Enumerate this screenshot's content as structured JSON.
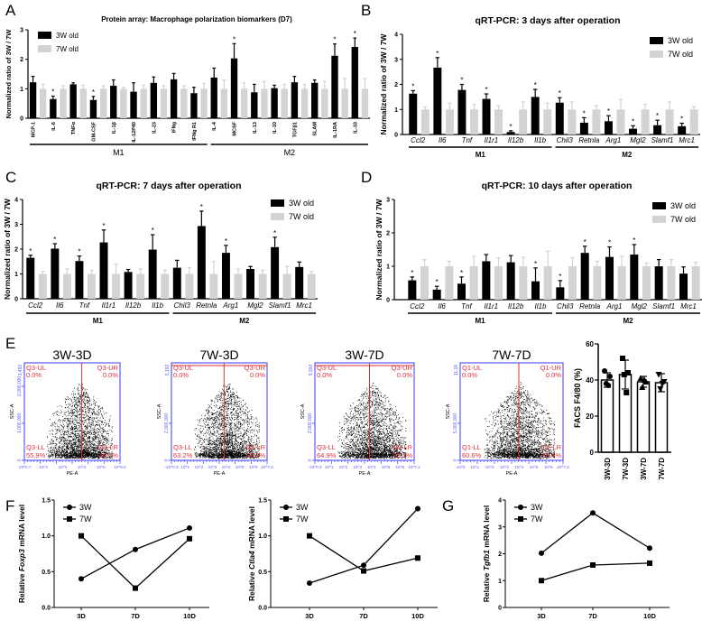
{
  "panel_labels": {
    "A": "A",
    "B": "B",
    "C": "C",
    "D": "D",
    "E": "E",
    "F": "F",
    "G": "G"
  },
  "chart_data": [
    {
      "id": "A",
      "type": "bar",
      "title": "Protein array: Macrophage polarization biomarkers (D7)",
      "ylabel": "Normalized ratio of 3W / 7W",
      "ylim": [
        0,
        3
      ],
      "yticks": [
        "0",
        "1",
        "2",
        "3"
      ],
      "categories": [
        "MCP-1",
        "IL-6",
        "TNFα",
        "GM-CSF",
        "IL-1β",
        "IL-12P40",
        "IL-23",
        "IFNg",
        "IFNg R1",
        "IL-4",
        "MCSF",
        "IL-13",
        "IL-10",
        "TGFβ1",
        "SLAM",
        "IL-1RA",
        "IL-33"
      ],
      "series": [
        {
          "name": "3W old",
          "color": "#000000",
          "values": [
            1.22,
            0.65,
            1.15,
            0.62,
            1.1,
            0.9,
            1.2,
            1.32,
            0.85,
            1.38,
            2.03,
            0.88,
            1.02,
            1.22,
            1.2,
            2.12,
            2.42
          ],
          "errors": [
            0.2,
            0.1,
            0.05,
            0.12,
            0.2,
            0.3,
            0.2,
            0.2,
            0.2,
            0.32,
            0.5,
            0.27,
            0.1,
            0.2,
            0.1,
            0.4,
            0.3
          ],
          "significant": [
            false,
            true,
            false,
            true,
            false,
            false,
            false,
            false,
            false,
            false,
            true,
            false,
            false,
            false,
            false,
            true,
            true
          ]
        },
        {
          "name": "7W old",
          "color": "#d3d3d3",
          "values": [
            1,
            1,
            1,
            1,
            1,
            1,
            1,
            1,
            1,
            1,
            1,
            1,
            1,
            1,
            1,
            1,
            1
          ],
          "errors": [
            0.15,
            0.1,
            0.12,
            0.1,
            0.05,
            0.12,
            0.1,
            0.1,
            0.18,
            0.3,
            0.2,
            0.25,
            0.15,
            0.15,
            0.25,
            0.35,
            0.35
          ]
        }
      ],
      "significance_mark": "*",
      "groups": [
        {
          "label": "M1",
          "from": 0,
          "to": 8
        },
        {
          "label": "M2",
          "from": 9,
          "to": 16
        }
      ],
      "legend": "top-left"
    },
    {
      "id": "B",
      "type": "bar",
      "title": "qRT-PCR: 3 days after operation",
      "ylabel": "Normalized ratio of 3W / 7W",
      "ylim": [
        0,
        4
      ],
      "yticks": [
        "0",
        "1",
        "2",
        "3",
        "4"
      ],
      "categories": [
        "Ccl2",
        "Il6",
        "Tnf",
        "Il1r1",
        "Il12b",
        "Il1b",
        "Chil3",
        "Retnla",
        "Arg1",
        "Mgl2",
        "Slamf1",
        "Mrc1"
      ],
      "series": [
        {
          "name": "3W old",
          "color": "#000000",
          "values": [
            1.63,
            2.67,
            1.78,
            1.42,
            0.1,
            1.5,
            1.27,
            0.47,
            0.53,
            0.23,
            0.37,
            0.33
          ],
          "errors": [
            0.12,
            0.4,
            0.22,
            0.2,
            0.05,
            0.3,
            0.2,
            0.2,
            0.22,
            0.12,
            0.2,
            0.12
          ],
          "significant": [
            true,
            true,
            true,
            true,
            true,
            true,
            true,
            true,
            true,
            true,
            true,
            true
          ]
        },
        {
          "name": "7W old",
          "color": "#d3d3d3",
          "values": [
            1,
            1,
            1,
            1,
            1,
            1,
            1,
            1,
            1,
            1,
            1,
            1
          ],
          "errors": [
            0.1,
            0.25,
            0.2,
            0.15,
            0.3,
            0.25,
            0.3,
            0.15,
            0.4,
            0.2,
            0.3,
            0.1
          ]
        }
      ],
      "significance_mark": "*",
      "groups": [
        {
          "label": "M1",
          "from": 0,
          "to": 5
        },
        {
          "label": "M2",
          "from": 6,
          "to": 11
        }
      ],
      "legend": "top-right"
    },
    {
      "id": "C",
      "type": "bar",
      "title": "qRT-PCR: 7 days after operation",
      "ylabel": "Normalized ratio of 3W / 7W",
      "ylim": [
        0,
        4
      ],
      "yticks": [
        "0",
        "1",
        "2",
        "3",
        "4"
      ],
      "categories": [
        "Ccl2",
        "Il6",
        "Tnf",
        "Il1r1",
        "Il12b",
        "Il1b",
        "Chil3",
        "Retnla",
        "Arg1",
        "Mgl2",
        "Slamf1",
        "Mrc1"
      ],
      "series": [
        {
          "name": "3W old",
          "color": "#000000",
          "values": [
            1.65,
            2.02,
            1.52,
            2.27,
            1.08,
            1.98,
            1.25,
            2.93,
            1.85,
            1.2,
            2.08,
            1.28
          ],
          "errors": [
            0.1,
            0.2,
            0.2,
            0.5,
            0.1,
            0.6,
            0.3,
            0.6,
            0.3,
            0.1,
            0.4,
            0.2
          ],
          "significant": [
            true,
            true,
            true,
            true,
            false,
            true,
            false,
            true,
            true,
            false,
            true,
            false
          ]
        },
        {
          "name": "7W old",
          "color": "#d3d3d3",
          "values": [
            1,
            1,
            1,
            1,
            1,
            1,
            1,
            1,
            1,
            1,
            1,
            1
          ],
          "errors": [
            0.1,
            0.2,
            0.15,
            0.4,
            0.2,
            0.15,
            0.25,
            0.5,
            0.2,
            0.15,
            0.3,
            0.1
          ]
        }
      ],
      "significance_mark": "*",
      "groups": [
        {
          "label": "M1",
          "from": 0,
          "to": 5
        },
        {
          "label": "M2",
          "from": 6,
          "to": 11
        }
      ],
      "legend": "top-right"
    },
    {
      "id": "D",
      "type": "bar",
      "title": "qRT-PCR: 10 days after operation",
      "ylabel": "Normalized ratio of 3W / 7W",
      "ylim": [
        0,
        3
      ],
      "yticks": [
        "0",
        "1",
        "2",
        "3"
      ],
      "categories": [
        "Ccl2",
        "Il6",
        "Tnf",
        "Il1r1",
        "Il12b",
        "Il1b",
        "Chil3",
        "Retnla",
        "Arg1",
        "Mgl2",
        "Slamf1",
        "Mrc1"
      ],
      "series": [
        {
          "name": "3W old",
          "color": "#000000",
          "values": [
            0.58,
            0.3,
            0.48,
            1.15,
            1.12,
            0.55,
            0.37,
            1.4,
            1.28,
            1.35,
            1.0,
            0.78
          ],
          "errors": [
            0.1,
            0.1,
            0.2,
            0.2,
            0.2,
            0.4,
            0.2,
            0.2,
            0.3,
            0.3,
            0.2,
            0.2
          ],
          "significant": [
            true,
            true,
            true,
            false,
            false,
            true,
            true,
            true,
            true,
            true,
            false,
            false
          ]
        },
        {
          "name": "7W old",
          "color": "#d3d3d3",
          "values": [
            1,
            1,
            1,
            1,
            1,
            1,
            1,
            1,
            1,
            1,
            1,
            1
          ],
          "errors": [
            0.2,
            0.15,
            0.3,
            0.25,
            0.27,
            0.45,
            0.25,
            0.15,
            0.3,
            0.1,
            0.2,
            0.12
          ]
        }
      ],
      "significance_mark": "*",
      "groups": [
        {
          "label": "M1",
          "from": 0,
          "to": 5
        },
        {
          "label": "M2",
          "from": 6,
          "to": 11
        }
      ],
      "legend": "top-right"
    },
    {
      "id": "E-flow",
      "type": "scatter",
      "xlabel": "PE-A",
      "ylabel": "SSC-A",
      "plots": [
        {
          "title": "3W-3D",
          "ymax_label": "3,492",
          "y_tick_labels": [
            "0",
            "1,000,000",
            "2,000,000"
          ],
          "x_tick_labels": [
            "-10^0.7",
            "10^2",
            "10^3",
            "10^4",
            "10^5",
            "10^6.5"
          ],
          "gate_fraction": 0.6,
          "top_gate": false,
          "ul": "Q3-UL",
          "ul_pct": "0.0%",
          "ur": "Q3-UR",
          "ur_pct": "0.0%",
          "ll": "Q3-LL",
          "ll_pct": "55.9%",
          "lr": "Q3-LR",
          "lr_pct": "44.1%"
        },
        {
          "title": "7W-3D",
          "ymax_label": "5,192",
          "y_tick_labels": [
            "0",
            "2,000,000"
          ],
          "x_tick_labels": [
            "-10^0.3",
            "10^1",
            "10^2",
            "10^3",
            "10^4",
            "10^5",
            "10^6",
            "10^7.2"
          ],
          "gate_fraction": 0.55,
          "top_gate": true,
          "ul": "Q3-UL",
          "ul_pct": "0.0%",
          "ur": "Q3-UR",
          "ur_pct": "0.0%",
          "ll": "Q3-LL",
          "ll_pct": "63.2%",
          "lr": "Q3-LR",
          "lr_pct": "36.8%"
        },
        {
          "title": "3W-7D",
          "ymax_label": "5,192",
          "y_tick_labels": [
            "0",
            "2,000,000"
          ],
          "x_tick_labels": [
            "-10^0.3",
            "10^1",
            "10^2",
            "10^3",
            "10^4",
            "10^5",
            "10^6",
            "10^7.2"
          ],
          "gate_fraction": 0.55,
          "top_gate": true,
          "ul": "Q3-UL",
          "ul_pct": "0.0%",
          "ur": "Q3-UR",
          "ur_pct": "0.0%",
          "ll": "Q3-LL",
          "ll_pct": "64.9%",
          "lr": "Q3-LR",
          "lr_pct": "35.1%"
        },
        {
          "title": "7W-7D",
          "ymax_label": "11,18",
          "y_tick_labels": [
            "0",
            "5,000,000"
          ],
          "x_tick_labels": [
            "-10^0",
            "10^1",
            "10^2",
            "10^3",
            "10^4",
            "10^5",
            "10^6",
            "10^7.2"
          ],
          "gate_fraction": 0.57,
          "top_gate": false,
          "ul": "Q1-UL",
          "ul_pct": "0.0%",
          "ur": "Q1-UR",
          "ur_pct": "0.0%",
          "ll": "Q1-LL",
          "ll_pct": "60.6%",
          "lr": "Q1-LR",
          "lr_pct": "39.4%"
        }
      ]
    },
    {
      "id": "E-bar",
      "type": "bar",
      "ylabel": "FACS F4/80 (%)",
      "ylim": [
        0,
        60
      ],
      "yticks": [
        "0",
        "20",
        "40",
        "60"
      ],
      "categories": [
        "3W-3D",
        "7W-3D",
        "3W-7D",
        "7W-7D"
      ],
      "values": [
        40,
        43,
        39,
        38.5
      ],
      "errors": [
        4,
        8,
        3,
        5
      ],
      "points": [
        [
          45,
          42,
          38,
          37
        ],
        [
          52,
          44,
          43,
          33
        ],
        [
          41,
          39,
          36,
          40
        ],
        [
          43,
          39,
          35,
          38
        ]
      ],
      "markers": [
        "circle",
        "square",
        "triangle",
        "triangle-down"
      ]
    },
    {
      "id": "F-Foxp3",
      "type": "line",
      "ylabel_prefix": "Relative",
      "ylabel_gene": "Foxp3",
      "ylabel_suffix": "mRNA level",
      "x": [
        "3D",
        "7D",
        "10D"
      ],
      "ylim": [
        0,
        1.5
      ],
      "yticks": [
        "0.0",
        "0.5",
        "1.0",
        "1.5"
      ],
      "series": [
        {
          "name": "3W",
          "marker": "circle",
          "values": [
            0.4,
            0.81,
            1.11
          ]
        },
        {
          "name": "7W",
          "marker": "square",
          "values": [
            1.0,
            0.27,
            0.96
          ]
        }
      ],
      "legend": "top-left"
    },
    {
      "id": "F-Ctla4",
      "type": "line",
      "ylabel_prefix": "Relative",
      "ylabel_gene": "Ctla4",
      "ylabel_suffix": "mRNA level",
      "x": [
        "3D",
        "7D",
        "10D"
      ],
      "ylim": [
        0,
        1.5
      ],
      "yticks": [
        "0.0",
        "0.5",
        "1.0",
        "1.5"
      ],
      "series": [
        {
          "name": "3W",
          "marker": "circle",
          "values": [
            0.34,
            0.59,
            1.38
          ]
        },
        {
          "name": "7W",
          "marker": "square",
          "values": [
            1.0,
            0.51,
            0.69
          ]
        }
      ],
      "legend": "top-left"
    },
    {
      "id": "G-Tgfb1",
      "type": "line",
      "ylabel_prefix": "Relative",
      "ylabel_gene": "Tgfb1",
      "ylabel_suffix": "mRNA level",
      "x": [
        "3D",
        "7D",
        "10D"
      ],
      "ylim": [
        0,
        4
      ],
      "yticks": [
        "0",
        "1",
        "2",
        "3",
        "4"
      ],
      "series": [
        {
          "name": "3W",
          "marker": "circle",
          "values": [
            2.02,
            3.52,
            2.21
          ]
        },
        {
          "name": "7W",
          "marker": "square",
          "values": [
            1.0,
            1.58,
            1.65
          ]
        }
      ],
      "legend": "top-left"
    }
  ]
}
